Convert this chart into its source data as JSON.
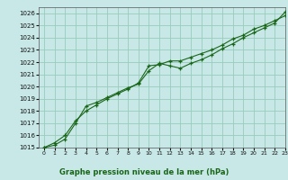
{
  "title": "Graphe pression niveau de la mer (hPa)",
  "background_color": "#c8e8e8",
  "grid_color": "#99ccbb",
  "line_color": "#1a6618",
  "xlim": [
    -0.5,
    23
  ],
  "ylim": [
    1015,
    1026.5
  ],
  "xticks": [
    0,
    1,
    2,
    3,
    4,
    5,
    6,
    7,
    8,
    9,
    10,
    11,
    12,
    13,
    14,
    15,
    16,
    17,
    18,
    19,
    20,
    21,
    22,
    23
  ],
  "yticks": [
    1015,
    1016,
    1017,
    1018,
    1019,
    1020,
    1021,
    1022,
    1023,
    1024,
    1025,
    1026
  ],
  "line1_x": [
    0,
    1,
    2,
    3,
    4,
    5,
    6,
    7,
    8,
    9,
    10,
    11,
    12,
    13,
    14,
    15,
    16,
    17,
    18,
    19,
    20,
    21,
    22,
    23
  ],
  "line1_y": [
    1015.0,
    1015.4,
    1016.0,
    1017.2,
    1018.0,
    1018.5,
    1019.0,
    1019.4,
    1019.8,
    1020.3,
    1021.7,
    1021.8,
    1022.1,
    1022.1,
    1022.4,
    1022.7,
    1023.0,
    1023.4,
    1023.9,
    1024.2,
    1024.7,
    1025.0,
    1025.4,
    1025.8
  ],
  "line2_x": [
    0,
    1,
    2,
    3,
    4,
    5,
    6,
    7,
    8,
    9,
    10,
    11,
    12,
    13,
    14,
    15,
    16,
    17,
    18,
    19,
    20,
    21,
    22,
    23
  ],
  "line2_y": [
    1015.0,
    1015.2,
    1015.7,
    1017.0,
    1018.4,
    1018.7,
    1019.1,
    1019.5,
    1019.9,
    1020.2,
    1021.3,
    1021.9,
    1021.7,
    1021.5,
    1021.9,
    1022.2,
    1022.6,
    1023.1,
    1023.5,
    1024.0,
    1024.4,
    1024.8,
    1025.2,
    1026.1
  ]
}
